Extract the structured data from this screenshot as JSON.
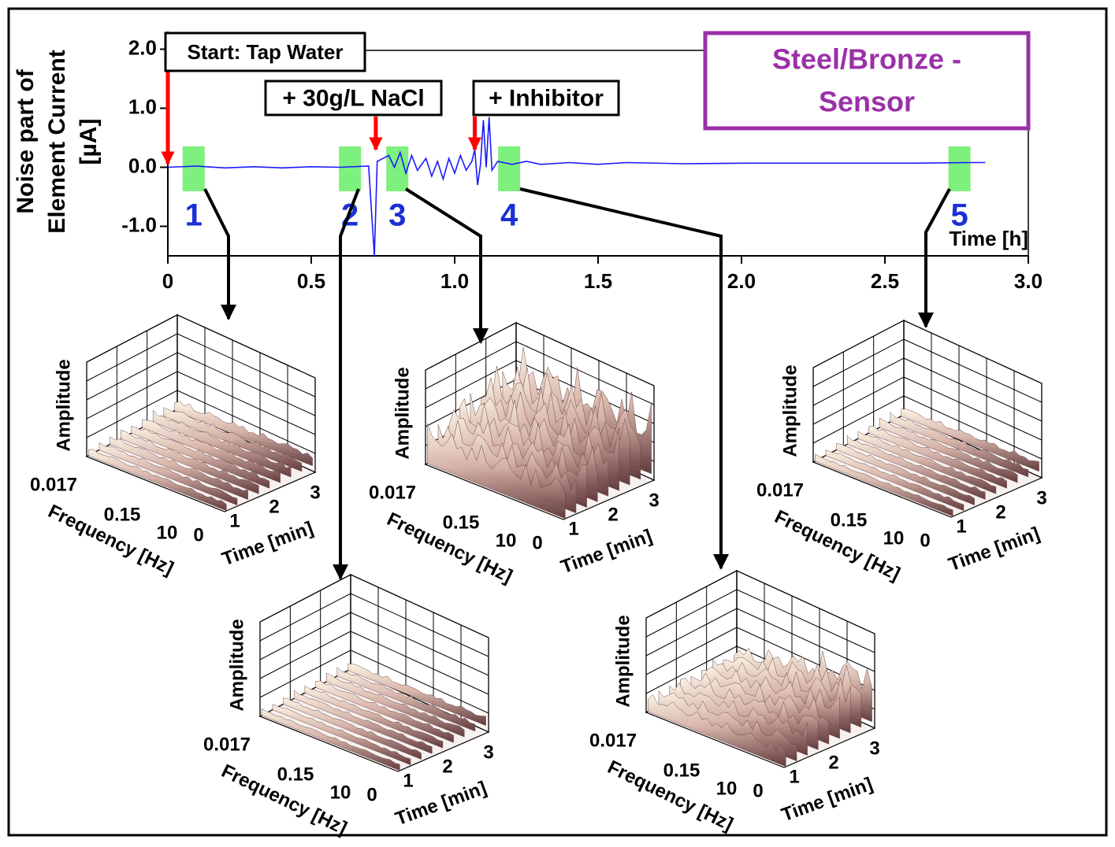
{
  "chart_data": {
    "type": "line",
    "title_lines": [
      "Steel/Bronze -",
      "Sensor"
    ],
    "y_label_lines": [
      "Noise part of",
      "Element Current",
      "[µA]"
    ],
    "x_label": "Time [h]",
    "xlim": [
      0,
      3
    ],
    "ylim": [
      -1.5,
      2.3
    ],
    "xticks": [
      0,
      0.5,
      {
        "value": 1,
        "label": "1.0"
      },
      1.5,
      {
        "value": 2,
        "label": "2.0"
      },
      2.5,
      {
        "value": 3,
        "label": "3.0"
      }
    ],
    "yticks": [
      {
        "value": 2,
        "label": "2.0"
      },
      {
        "value": 1,
        "label": "1.0"
      },
      {
        "value": 0,
        "label": "0.0"
      },
      {
        "value": -1,
        "label": "-1.0"
      }
    ],
    "series": [
      {
        "name": "Noise part of Element Current",
        "color": "#1a1aff",
        "x": [
          0,
          0.1,
          0.2,
          0.3,
          0.4,
          0.5,
          0.6,
          0.7,
          0.72,
          0.73,
          0.75,
          0.77,
          0.79,
          0.81,
          0.83,
          0.85,
          0.87,
          0.9,
          0.92,
          0.94,
          0.96,
          0.98,
          1.0,
          1.02,
          1.04,
          1.06,
          1.07,
          1.08,
          1.09,
          1.1,
          1.11,
          1.12,
          1.13,
          1.15,
          1.2,
          1.25,
          1.3,
          1.4,
          1.5,
          1.6,
          1.8,
          2.0,
          2.2,
          2.4,
          2.6,
          2.8,
          2.85
        ],
        "values": [
          0,
          0.02,
          -0.01,
          0.01,
          -0.01,
          0.01,
          0,
          0.02,
          -1.5,
          0.1,
          0.15,
          0.2,
          0,
          0.25,
          -0.1,
          0.2,
          -0.05,
          0.15,
          -0.15,
          0.1,
          -0.2,
          0.15,
          -0.1,
          0.2,
          -0.05,
          0.1,
          0.3,
          -0.3,
          0.05,
          0.8,
          0,
          0.85,
          -0.05,
          0.1,
          0.05,
          0.1,
          0.05,
          0.08,
          0.05,
          0.08,
          0.06,
          0.07,
          0.07,
          0.07,
          0.07,
          0.08,
          0.08
        ]
      }
    ],
    "events": [
      {
        "label": "Start: Tap Water",
        "x": 0
      },
      {
        "label": "+ 30g/L NaCl",
        "x": 0.725
      },
      {
        "label": "+ Inhibitor",
        "x": 1.07
      }
    ],
    "windows": [
      {
        "label": "1",
        "x": 0.09
      },
      {
        "label": "2",
        "x": 0.635
      },
      {
        "label": "3",
        "x": 0.8
      },
      {
        "label": "4",
        "x": 1.19
      },
      {
        "label": "5",
        "x": 2.76
      }
    ],
    "spectrogram": {
      "z_label": "Amplitude",
      "frequency_label": "Frequency [Hz]",
      "frequency_ticks": [
        "0.017",
        "0.15",
        "10"
      ],
      "time_label": "Time [min]",
      "time_ticks": [
        0,
        1,
        2,
        3
      ]
    }
  }
}
